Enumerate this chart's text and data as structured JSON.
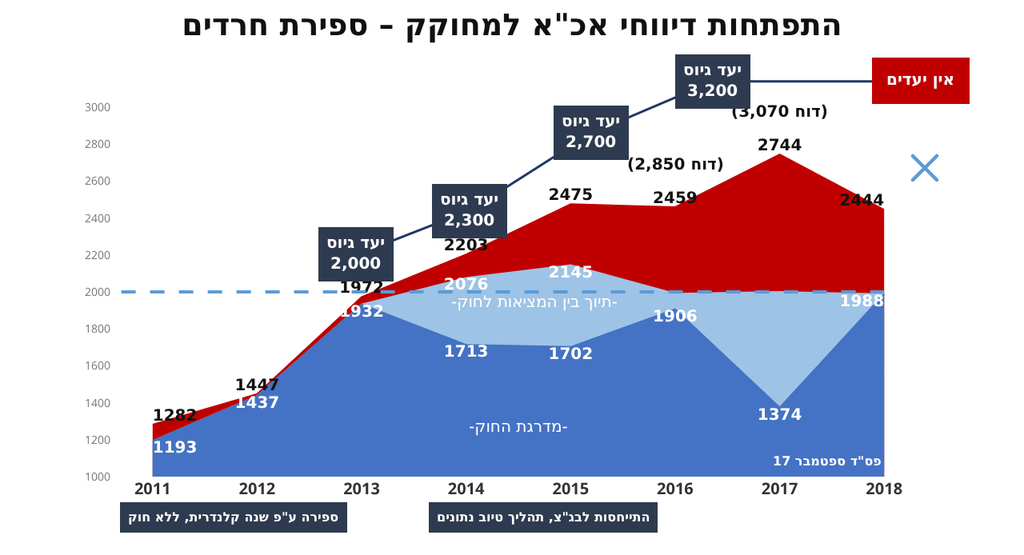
{
  "chart_data": {
    "type": "area",
    "title": "התפתחות דיווחי אכ\"א למחוקק – ספירת חרדים",
    "categories": [
      "2011",
      "2012",
      "2013",
      "2014",
      "2015",
      "2016",
      "2017",
      "2018"
    ],
    "series": [
      {
        "color": "#c00000",
        "values": [
          1282,
          1447,
          1972,
          2203,
          2475,
          2459,
          2744,
          2444
        ],
        "value_labels": [
          "1282",
          "1447",
          "1972",
          "2203",
          "2475",
          "2459",
          "2744",
          "2444"
        ]
      },
      {
        "color": "#9dc3e6",
        "values": [
          1193,
          1437,
          1932,
          2076,
          2145,
          1990,
          2000,
          1988
        ],
        "value_labels": [
          null,
          null,
          null,
          "2076",
          "2145",
          null,
          null,
          null
        ]
      },
      {
        "color": "#4472c4",
        "values": [
          1193,
          1437,
          1932,
          1713,
          1702,
          1906,
          1374,
          1988
        ],
        "value_labels": [
          "1193",
          "1437",
          "1932",
          "1713",
          "1702",
          "1906",
          "1374",
          "1988"
        ]
      }
    ],
    "ylim": [
      1000,
      3000
    ],
    "yticks": [
      1000,
      1200,
      1400,
      1600,
      1800,
      2000,
      2200,
      2400,
      2600,
      2800,
      3000
    ],
    "grid": false,
    "legend": false,
    "ref_lines": [
      {
        "axis": "y",
        "value": 2000,
        "color": "#5b9bd5",
        "line_style": "dashed"
      }
    ],
    "annotations": [
      {
        "text": "(דוח 2,850)",
        "x": "2016",
        "y": 2459
      },
      {
        "text": "(דוח 3,070)",
        "x": "2017",
        "y": 2744
      },
      "-תיוך בין המציאות לחוק-",
      "-מדרגת החוק-",
      "פס\"ד ספטמבר 17",
      "יעד גיוס\n2,000",
      "יעד גיוס\n2,300",
      "יעד גיוס\n2,700",
      "יעד גיוס\n3,200",
      "אין יעדים",
      "ספירה ע\"פ שנה קלנדרית, ללא חוק",
      "התייחסות לבג\"צ, תהליך טיוב נתונים"
    ]
  }
}
